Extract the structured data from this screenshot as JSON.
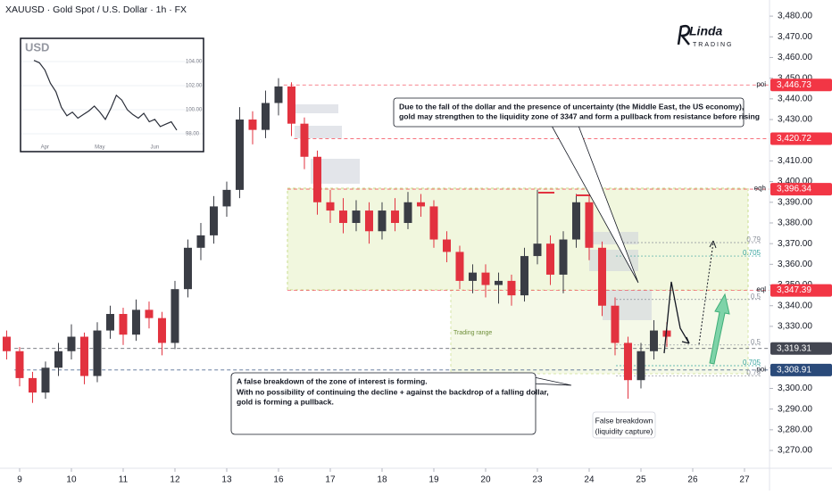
{
  "chart_data": {
    "type": "candlestick",
    "title": "XAUUSD · Gold Spot / U.S. Dollar · 1h · FX",
    "up_color": "#3a3d45",
    "down_color": "#e2323f",
    "xlim": [
      -0.379,
      14.483
    ],
    "ylim": [
      3261.4,
      3487.8
    ],
    "xticks": [
      {
        "value": 0,
        "label": "9"
      },
      {
        "value": 1,
        "label": "10"
      },
      {
        "value": 2,
        "label": "11"
      },
      {
        "value": 3,
        "label": "12"
      },
      {
        "value": 4,
        "label": "13"
      },
      {
        "value": 5,
        "label": "16"
      },
      {
        "value": 6,
        "label": "17"
      },
      {
        "value": 7,
        "label": "18"
      },
      {
        "value": 8,
        "label": "19"
      },
      {
        "value": 9,
        "label": "20"
      },
      {
        "value": 10,
        "label": "23"
      },
      {
        "value": 11,
        "label": "24"
      },
      {
        "value": 12,
        "label": "25"
      },
      {
        "value": 13,
        "label": "26"
      },
      {
        "value": 14,
        "label": "27"
      }
    ],
    "yticks": [
      {
        "value": 3270,
        "label": "3,270.00"
      },
      {
        "value": 3280,
        "label": "3,280.00"
      },
      {
        "value": 3290,
        "label": "3,290.00"
      },
      {
        "value": 3300,
        "label": "3,300.00"
      },
      {
        "value": 3310,
        "label": "3,310.00"
      },
      {
        "value": 3330,
        "label": "3,330.00"
      },
      {
        "value": 3340,
        "label": "3,340.00"
      },
      {
        "value": 3350,
        "label": "3,350.00"
      },
      {
        "value": 3360,
        "label": "3,360.00"
      },
      {
        "value": 3370,
        "label": "3,370.00"
      },
      {
        "value": 3380,
        "label": "3,380.00"
      },
      {
        "value": 3390,
        "label": "3,390.00"
      },
      {
        "value": 3400,
        "label": "3,400.00"
      },
      {
        "value": 3410,
        "label": "3,410.00"
      },
      {
        "value": 3430,
        "label": "3,430.00"
      },
      {
        "value": 3440,
        "label": "3,440.00"
      },
      {
        "value": 3450,
        "label": "3,450.00"
      },
      {
        "value": 3460,
        "label": "3,460.00"
      },
      {
        "value": 3470,
        "label": "3,470.00"
      },
      {
        "value": 3480,
        "label": "3,480.00"
      }
    ],
    "x": [
      -0.25,
      0,
      0.25,
      0.5,
      0.75,
      1,
      1.25,
      1.5,
      1.75,
      2,
      2.25,
      2.5,
      2.75,
      3,
      3.25,
      3.5,
      3.75,
      4,
      4.25,
      4.5,
      4.75,
      5,
      5.25,
      5.5,
      5.75,
      6,
      6.25,
      6.5,
      6.75,
      7,
      7.25,
      7.5,
      7.75,
      8,
      8.25,
      8.5,
      8.75,
      9,
      9.25,
      9.5,
      9.75,
      10,
      10.25,
      10.5,
      10.75,
      11,
      11.25,
      11.5,
      11.75,
      12,
      12.25,
      12.5
    ],
    "open": [
      3325,
      3318,
      3305,
      3298,
      3310,
      3318,
      3325,
      3306,
      3328,
      3336,
      3326,
      3338,
      3334,
      3322,
      3348,
      3368,
      3374,
      3388,
      3396,
      3430,
      3425,
      3438,
      3446,
      3428,
      3412,
      3390,
      3386,
      3380,
      3386,
      3376,
      3386,
      3380,
      3390,
      3388,
      3372,
      3366,
      3352,
      3356,
      3350,
      3352,
      3345,
      3364,
      3370,
      3355,
      3372,
      3390,
      3368,
      3340,
      3322,
      3304,
      3318,
      3328
    ],
    "high": [
      3328,
      3320,
      3308,
      3313,
      3322,
      3331,
      3327,
      3332,
      3340,
      3339,
      3343,
      3342,
      3337,
      3352,
      3372,
      3380,
      3393,
      3400,
      3436,
      3434,
      3444,
      3450,
      3448,
      3431,
      3415,
      3396,
      3392,
      3391,
      3390,
      3390,
      3392,
      3395,
      3394,
      3391,
      3376,
      3369,
      3360,
      3360,
      3356,
      3355,
      3368,
      3396,
      3374,
      3376,
      3394,
      3393,
      3371,
      3344,
      3325,
      3322,
      3333,
      3332
    ],
    "low": [
      3314,
      3301,
      3293,
      3295,
      3306,
      3314,
      3302,
      3303,
      3324,
      3321,
      3323,
      3329,
      3316,
      3319,
      3344,
      3362,
      3370,
      3383,
      3392,
      3418,
      3421,
      3432,
      3422,
      3406,
      3384,
      3380,
      3375,
      3376,
      3370,
      3372,
      3376,
      3377,
      3383,
      3368,
      3361,
      3348,
      3346,
      3344,
      3341,
      3340,
      3342,
      3360,
      3350,
      3346,
      3368,
      3362,
      3335,
      3316,
      3295,
      3300,
      3314,
      3320
    ],
    "close": [
      3318,
      3305,
      3298,
      3310,
      3318,
      3325,
      3306,
      3328,
      3336,
      3326,
      3338,
      3334,
      3322,
      3348,
      3368,
      3374,
      3388,
      3396,
      3430,
      3425,
      3438,
      3446,
      3428,
      3412,
      3390,
      3386,
      3380,
      3386,
      3376,
      3386,
      3380,
      3390,
      3388,
      3372,
      3366,
      3352,
      3356,
      3350,
      3352,
      3345,
      3364,
      3370,
      3355,
      3372,
      3390,
      3368,
      3340,
      3322,
      3304,
      3318,
      3328,
      3325
    ],
    "levels": [
      {
        "value": 3446.73,
        "label": "3,446.73",
        "tag": "poi",
        "color": "#f23645",
        "from": 5.1
      },
      {
        "value": 3420.72,
        "label": "3,420.72",
        "color": "#f23645",
        "from": 5.3
      },
      {
        "value": 3396.34,
        "label": "3,396.34",
        "tag": "eqh",
        "color": "#f23645",
        "from": 5.17
      },
      {
        "value": 3347.39,
        "label": "3,347.39",
        "tag": "eql",
        "color": "#f23645",
        "from": 5.17
      },
      {
        "value": 3319.31,
        "label": "3,319.31",
        "color": "#434651",
        "from": -0.1
      },
      {
        "value": 3308.91,
        "label": "3,308.91",
        "tag": "poi",
        "color": "#2a4a7a",
        "from": -0.1
      }
    ],
    "fib_levels": [
      {
        "value": 3370.5,
        "label": "0.79",
        "color": "#8a8f99"
      },
      {
        "value": 3364,
        "label": "0.705",
        "color": "#3aa6a0"
      },
      {
        "value": 3343,
        "label": "0.5",
        "color": "#8a8f99"
      },
      {
        "value": 3321,
        "label": "0.5",
        "color": "#8a8f99"
      },
      {
        "value": 3311,
        "label": "0.705",
        "color": "#3aa6a0"
      },
      {
        "value": 3306,
        "label": "0.79",
        "color": "#8a8f99"
      }
    ],
    "annotations": {
      "forecast": [
        "Due to the fall of the dollar and the presence of uncertainty (the Middle East, the US economy),",
        "gold may strengthen to the liquidity zone of 3347 and form a pullback from resistance before rising"
      ],
      "breakdown": [
        "A false breakdown of the zone of interest is forming.",
        "With no possibility of continuing the decline + against the backdrop of a falling dollar,",
        "gold is forming a pullback."
      ],
      "false_breakdown": [
        "False breakdown",
        "(liquidity capture)"
      ],
      "range": "Trading range"
    },
    "logo": {
      "name": "Linda",
      "sub": "TRADING"
    },
    "inset": {
      "title": "USD",
      "ylim": [
        96.89,
        105.56
      ],
      "yticks": [
        {
          "value": 104,
          "label": "104.00"
        },
        {
          "value": 102,
          "label": "102.00"
        },
        {
          "value": 100,
          "label": "100.00"
        },
        {
          "value": 98,
          "label": "98.00"
        }
      ],
      "categories": [
        null,
        null,
        "Apr",
        null,
        null,
        null,
        null,
        null,
        null,
        null,
        null,
        null,
        "May",
        null,
        null,
        null,
        null,
        null,
        null,
        null,
        null,
        null,
        "Jun",
        null,
        null,
        null,
        null
      ],
      "values": [
        104.1,
        103.9,
        103.3,
        102.2,
        101.5,
        100.2,
        99.5,
        99.8,
        99.3,
        99.6,
        99.9,
        100.3,
        99.8,
        99.2,
        100.1,
        101.2,
        100.8,
        100.0,
        99.6,
        99.3,
        99.7,
        99.0,
        99.2,
        98.6,
        98.8,
        99.0,
        98.3
      ],
      "color": "#2a2e39"
    }
  }
}
